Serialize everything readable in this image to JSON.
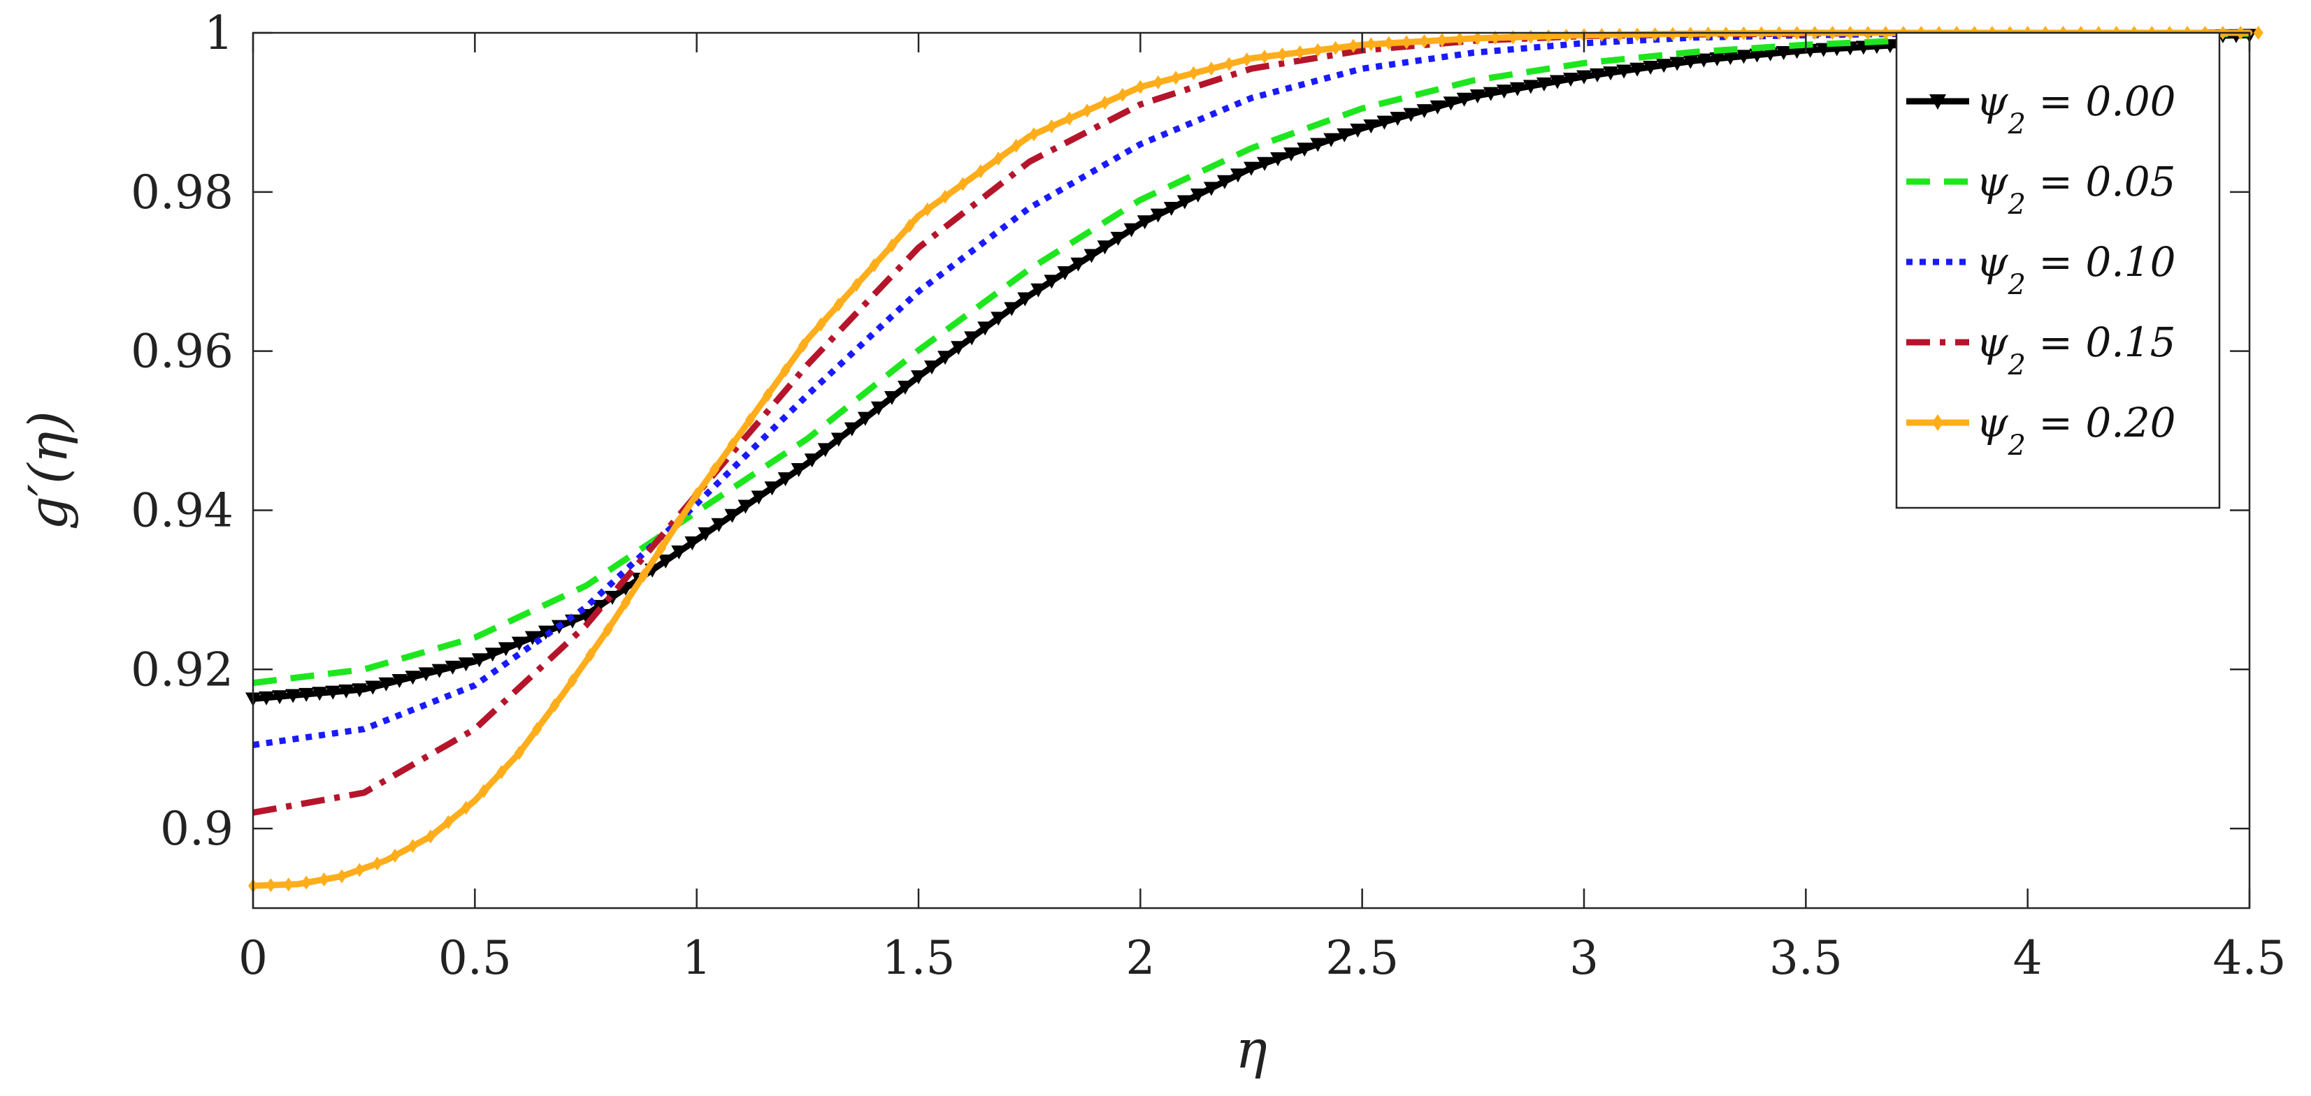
{
  "chart_data": {
    "type": "line",
    "xlabel": "η",
    "ylabel": "g′(η)",
    "xlim": [
      0,
      4.5
    ],
    "ylim": [
      0.89,
      1.0
    ],
    "xticks": [
      0,
      0.5,
      1,
      1.5,
      2,
      2.5,
      3,
      3.5,
      4,
      4.5
    ],
    "xtick_labels": [
      "0",
      "0.5",
      "1",
      "1.5",
      "2",
      "2.5",
      "3",
      "3.5",
      "4",
      "4.5"
    ],
    "yticks": [
      0.9,
      0.92,
      0.94,
      0.96,
      0.98,
      1.0
    ],
    "ytick_labels": [
      "0.9",
      "0.92",
      "0.94",
      "0.96",
      "0.98",
      "1"
    ],
    "grid": false,
    "legend_position": "top-right",
    "series": [
      {
        "name": "ψ2 = 0.00",
        "legend_prefix": "ψ",
        "legend_sub": "2",
        "legend_value": " = 0.00",
        "color": "#000000",
        "line_style": "solid",
        "marker": "triangle-down",
        "x": [
          0,
          0.25,
          0.5,
          0.75,
          1.0,
          1.25,
          1.5,
          1.75,
          2.0,
          2.25,
          2.5,
          2.75,
          3.0,
          3.25,
          3.5,
          3.75,
          4.0,
          4.25,
          4.5
        ],
        "y": [
          0.9163,
          0.9175,
          0.921,
          0.9268,
          0.9363,
          0.9459,
          0.9568,
          0.967,
          0.976,
          0.983,
          0.988,
          0.992,
          0.9945,
          0.9965,
          0.9978,
          0.9986,
          0.9991,
          0.9995,
          0.9997
        ]
      },
      {
        "name": "ψ2 = 0.05",
        "legend_prefix": "ψ",
        "legend_sub": "2",
        "legend_value": " = 0.05",
        "color": "#1ee61e",
        "line_style": "dashed",
        "marker": "none",
        "x": [
          0,
          0.25,
          0.5,
          0.75,
          1.0,
          1.25,
          1.5,
          1.75,
          2.0,
          2.25,
          2.5,
          2.75,
          3.0,
          3.25,
          3.5,
          3.75,
          4.0,
          4.25,
          4.5
        ],
        "y": [
          0.9183,
          0.92,
          0.924,
          0.9305,
          0.9398,
          0.949,
          0.9601,
          0.9703,
          0.979,
          0.9855,
          0.9905,
          0.994,
          0.9962,
          0.9976,
          0.9985,
          0.9991,
          0.9995,
          0.9997,
          0.9999
        ]
      },
      {
        "name": "ψ2 = 0.10",
        "legend_prefix": "ψ",
        "legend_sub": "2",
        "legend_value": " = 0.10",
        "color": "#1a1aff",
        "line_style": "dotted",
        "marker": "none",
        "x": [
          0,
          0.25,
          0.5,
          0.75,
          1.0,
          1.25,
          1.5,
          1.75,
          2.0,
          2.25,
          2.5,
          2.75,
          3.0,
          3.25,
          3.5,
          3.75,
          4.0,
          4.25,
          4.5
        ],
        "y": [
          0.9105,
          0.9125,
          0.918,
          0.9278,
          0.9408,
          0.9545,
          0.9675,
          0.978,
          0.986,
          0.9918,
          0.9955,
          0.9975,
          0.9987,
          0.9994,
          0.9997,
          0.9999,
          1.0,
          1.0,
          1.0
        ]
      },
      {
        "name": "ψ2 = 0.15",
        "legend_prefix": "ψ",
        "legend_sub": "2",
        "legend_value": " = 0.15",
        "color": "#b5152b",
        "line_style": "dash-dot",
        "marker": "none",
        "x": [
          0,
          0.25,
          0.5,
          0.75,
          1.0,
          1.25,
          1.5,
          1.75,
          2.0,
          2.25,
          2.5,
          2.75,
          3.0,
          3.25,
          3.5,
          3.75,
          4.0,
          4.25,
          4.5
        ],
        "y": [
          0.902,
          0.9045,
          0.9125,
          0.9255,
          0.942,
          0.9583,
          0.973,
          0.9838,
          0.991,
          0.9955,
          0.9978,
          0.999,
          0.9996,
          0.9998,
          0.9999,
          1.0,
          1.0,
          1.0,
          1.0
        ]
      },
      {
        "name": "ψ2 = 0.20",
        "legend_prefix": "ψ",
        "legend_sub": "2",
        "legend_value": " = 0.20",
        "color": "#ffad1a",
        "line_style": "solid",
        "marker": "diamond",
        "x": [
          0,
          0.1,
          0.2,
          0.3,
          0.4,
          0.5,
          0.6,
          0.7,
          0.8,
          0.9,
          1.0,
          1.25,
          1.5,
          1.75,
          2.0,
          2.25,
          2.5,
          2.75,
          3.0,
          3.25,
          3.5,
          3.75,
          4.0,
          4.25,
          4.5
        ],
        "y": [
          0.8928,
          0.893,
          0.894,
          0.896,
          0.899,
          0.9035,
          0.9095,
          0.917,
          0.925,
          0.9335,
          0.942,
          0.9615,
          0.977,
          0.987,
          0.9932,
          0.9968,
          0.9985,
          0.9993,
          0.9997,
          0.9999,
          1.0,
          1.0,
          1.0,
          1.0,
          1.0
        ]
      }
    ]
  }
}
